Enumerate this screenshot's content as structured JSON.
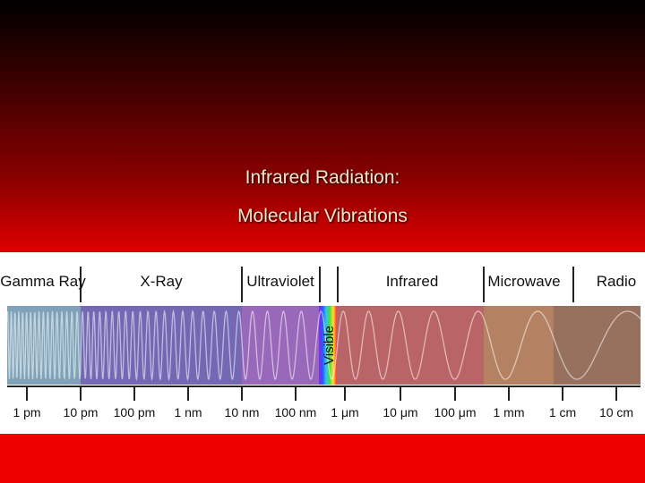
{
  "slide": {
    "title_lines": [
      "Infrared Radiation:",
      "Molecular Vibrations"
    ],
    "spectrum": {
      "bands": [
        "Gamma Ray",
        "X-Ray",
        "Ultraviolet",
        "Visible",
        "Infrared",
        "Microwave",
        "Radio"
      ],
      "scale_labels": [
        "1 pm",
        "10 pm",
        "100 pm",
        "1 nm",
        "10 nm",
        "100 nm",
        "1 μm",
        "10 μm",
        "100 μm",
        "1 mm",
        "1 cm",
        "10 cm"
      ]
    }
  }
}
